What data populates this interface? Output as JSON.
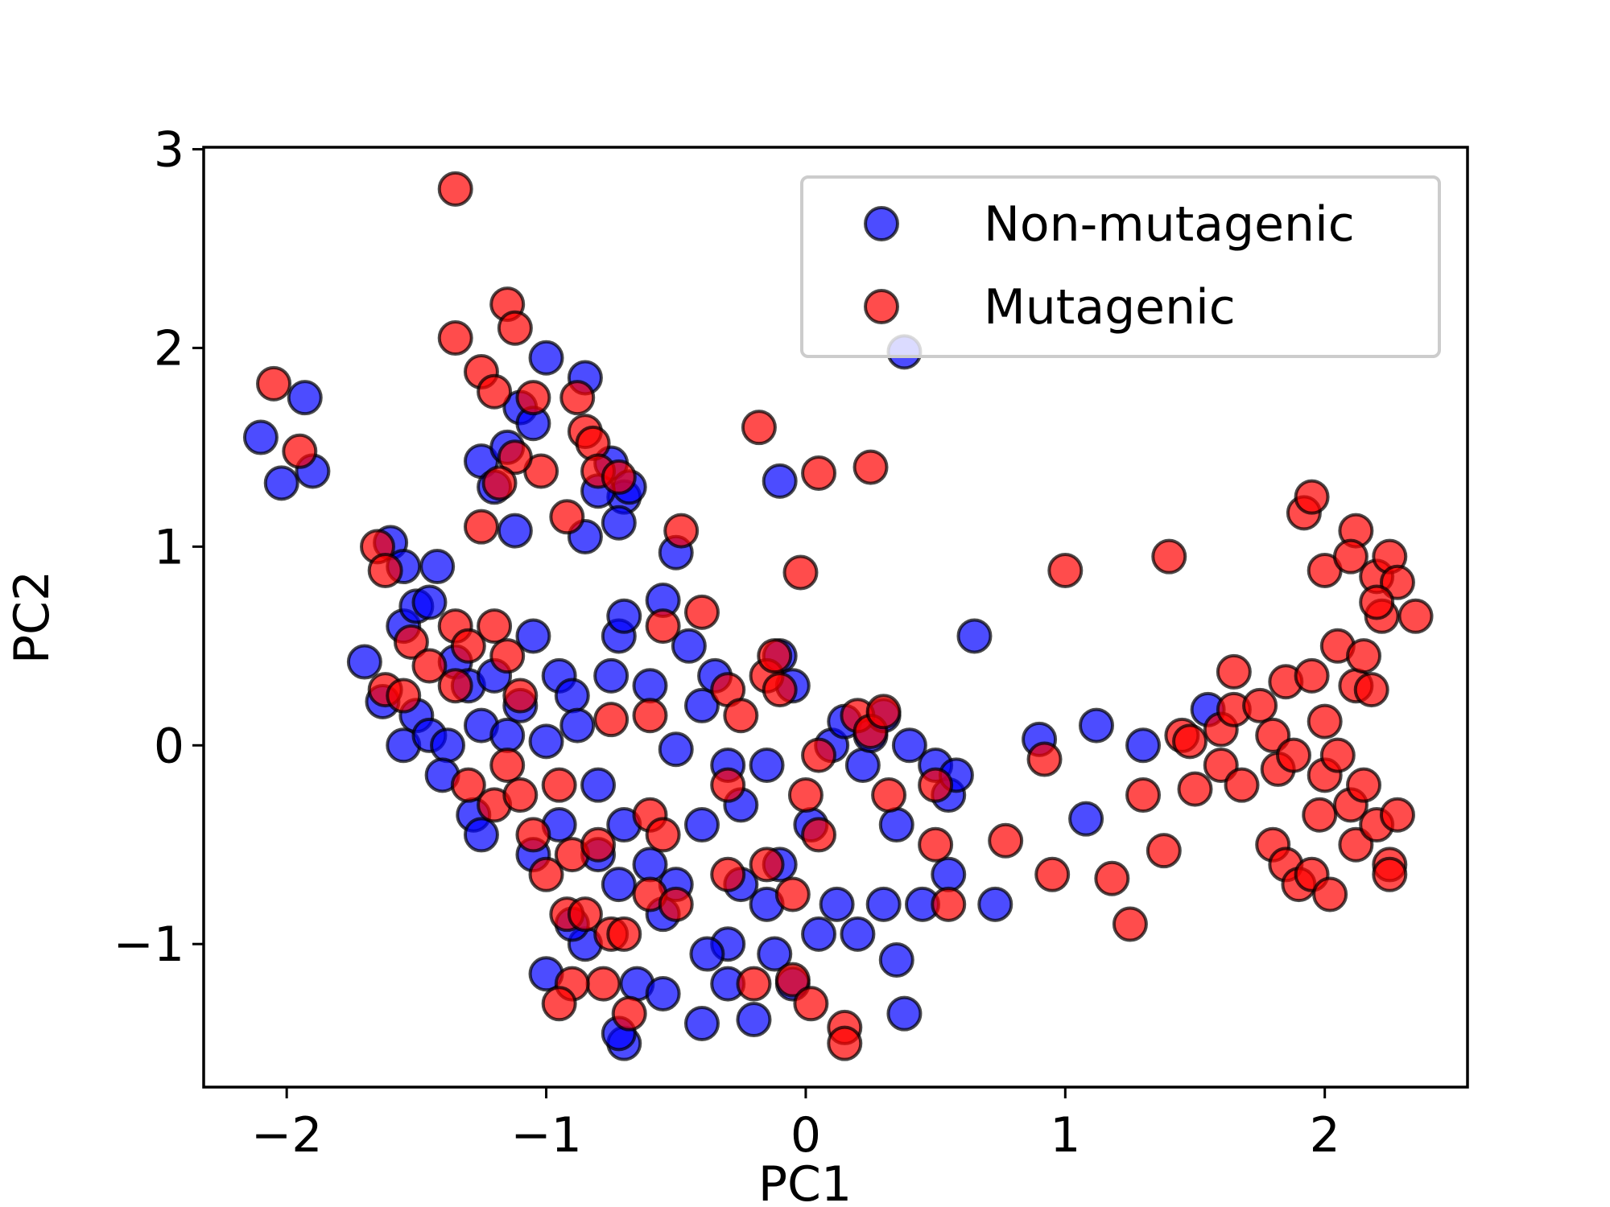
{
  "chart_data": {
    "type": "scatter",
    "x_label": "PC1",
    "y_label": "PC2",
    "xlim": [
      -2.32,
      2.55
    ],
    "ylim": [
      -1.72,
      3.01
    ],
    "xticks": [
      {
        "value": -2,
        "label": "−2"
      },
      {
        "value": -1,
        "label": "−1"
      },
      0,
      1,
      2
    ],
    "yticks": [
      {
        "value": -1,
        "label": "−1"
      },
      0,
      1,
      2,
      3
    ],
    "legend": "upper right",
    "series": [
      {
        "name": "Non-mutagenic",
        "color": "#0000ff",
        "x": [
          -2.1,
          -2.02,
          -1.93,
          -1.9,
          -1.6,
          -1.55,
          -1.42,
          -1.7,
          -1.63,
          -1.55,
          -1.5,
          -1.45,
          -1.55,
          -1.5,
          -1.45,
          -1.38,
          -1.4,
          -1.35,
          -1.3,
          -1.28,
          -1.25,
          -1.2,
          -1.15,
          -1.1,
          -1.05,
          -1.0,
          -0.95,
          -0.9,
          -0.88,
          -0.8,
          -0.75,
          -0.72,
          -0.7,
          -0.6,
          -0.5,
          -0.45,
          -0.4,
          -0.35,
          -0.3,
          -0.25,
          -0.15,
          -0.1,
          -0.05,
          -0.1,
          -0.15,
          -0.25,
          -0.3,
          -0.38,
          -0.4,
          -0.5,
          -0.55,
          -0.6,
          -0.7,
          -0.72,
          -0.8,
          -0.85,
          -0.9,
          -1.0,
          -0.95,
          -1.05,
          -1.25,
          -0.65,
          -0.55,
          -0.7,
          -0.72,
          -0.4,
          -0.3,
          -0.2,
          -0.12,
          -0.05,
          0.02,
          0.05,
          0.1,
          0.15,
          0.22,
          0.25,
          0.3,
          0.35,
          0.4,
          0.45,
          0.3,
          0.35,
          0.38,
          0.2,
          0.12,
          0.5,
          0.55,
          0.58,
          0.55,
          0.65,
          0.73,
          0.9,
          1.08,
          1.12,
          1.3,
          1.55,
          0.38,
          -0.1,
          -0.5,
          -0.55,
          -1.0,
          -0.85,
          -1.1,
          -1.25,
          -1.15,
          -1.05,
          -1.2,
          -1.12,
          -0.85,
          -0.75,
          -0.7,
          -0.72,
          -0.68,
          -0.8
        ],
        "y": [
          1.55,
          1.32,
          1.75,
          1.38,
          1.02,
          0.9,
          0.9,
          0.42,
          0.22,
          0.6,
          0.7,
          0.72,
          0.0,
          0.15,
          0.05,
          0.0,
          -0.15,
          0.42,
          0.3,
          -0.35,
          0.1,
          0.35,
          0.05,
          0.2,
          0.55,
          0.02,
          0.35,
          0.25,
          0.1,
          -0.2,
          0.35,
          0.55,
          0.65,
          0.3,
          -0.02,
          0.5,
          0.2,
          0.35,
          -0.1,
          -0.3,
          -0.1,
          0.45,
          0.3,
          -0.6,
          -0.8,
          -0.7,
          -1.0,
          -1.05,
          -0.4,
          -0.7,
          -0.85,
          -0.6,
          -0.4,
          -0.7,
          -0.55,
          -1.0,
          -0.9,
          -1.15,
          -0.4,
          -0.55,
          -0.45,
          -1.2,
          -1.25,
          -1.5,
          -1.45,
          -1.4,
          -1.2,
          -1.38,
          -1.05,
          -1.2,
          -0.4,
          -0.95,
          0.0,
          0.12,
          -0.1,
          0.05,
          0.15,
          -0.4,
          0.0,
          -0.8,
          -0.8,
          -1.08,
          -1.35,
          -0.95,
          -0.8,
          -0.1,
          -0.25,
          -0.15,
          -0.65,
          0.55,
          -0.8,
          0.03,
          -0.37,
          0.1,
          0.0,
          0.18,
          1.98,
          1.33,
          0.97,
          0.73,
          1.95,
          1.85,
          1.7,
          1.43,
          1.5,
          1.62,
          1.3,
          1.08,
          1.05,
          1.42,
          1.25,
          1.12,
          1.3,
          1.28
        ]
      },
      {
        "name": "Mutagenic",
        "color": "#ff0000",
        "x": [
          -1.35,
          -1.35,
          -1.15,
          -1.12,
          -1.25,
          -1.2,
          -1.05,
          -0.88,
          -0.85,
          -0.82,
          -0.8,
          -0.72,
          -1.02,
          -1.12,
          -1.18,
          -0.92,
          -1.25,
          -0.48,
          -0.18,
          0.05,
          0.25,
          -0.02,
          1.0,
          1.4,
          -2.05,
          -1.95,
          -1.65,
          -1.62,
          -1.52,
          -1.45,
          -1.35,
          -1.3,
          -1.2,
          -1.15,
          -1.1,
          -1.35,
          -1.62,
          -1.55,
          -1.3,
          -1.2,
          -1.15,
          -1.1,
          -1.05,
          -1.0,
          -0.95,
          -0.9,
          -0.92,
          -0.85,
          -0.8,
          -0.75,
          -0.7,
          -0.78,
          -0.68,
          -0.9,
          -0.95,
          -0.6,
          -0.5,
          -0.6,
          -0.55,
          -0.55,
          -0.4,
          -0.6,
          -0.75,
          -0.3,
          -0.25,
          -0.15,
          -0.12,
          -0.1,
          -0.3,
          -0.3,
          -0.15,
          -0.05,
          0.0,
          0.05,
          0.05,
          -0.2,
          -0.05,
          0.02,
          0.15,
          0.15,
          0.2,
          0.25,
          0.3,
          0.32,
          0.5,
          0.5,
          0.55,
          0.77,
          0.92,
          0.95,
          1.18,
          1.25,
          1.3,
          1.38,
          1.45,
          1.48,
          1.5,
          1.6,
          1.65,
          1.65,
          1.6,
          1.68,
          1.75,
          1.8,
          1.85,
          1.82,
          1.88,
          1.8,
          1.85,
          1.9,
          1.95,
          2.02,
          1.98,
          2.0,
          2.05,
          2.1,
          2.12,
          2.15,
          2.2,
          2.25,
          2.25,
          2.28,
          1.95,
          2.0,
          2.05,
          2.12,
          2.15,
          2.18,
          1.92,
          1.95,
          2.0,
          2.12,
          2.1,
          2.2,
          2.25,
          2.22,
          2.28,
          2.35,
          2.2
        ],
        "y": [
          2.8,
          2.05,
          2.22,
          2.1,
          1.88,
          1.78,
          1.75,
          1.75,
          1.58,
          1.52,
          1.38,
          1.35,
          1.38,
          1.45,
          1.32,
          1.15,
          1.1,
          1.08,
          1.6,
          1.37,
          1.4,
          0.87,
          0.88,
          0.95,
          1.82,
          1.48,
          1.0,
          0.88,
          0.52,
          0.4,
          0.6,
          0.5,
          0.6,
          0.45,
          0.25,
          0.3,
          0.28,
          0.25,
          -0.2,
          -0.3,
          -0.1,
          -0.25,
          -0.45,
          -0.65,
          -0.2,
          -0.55,
          -0.85,
          -0.85,
          -0.5,
          -0.95,
          -0.95,
          -1.2,
          -1.35,
          -1.2,
          -1.3,
          -0.75,
          -0.8,
          -0.35,
          -0.45,
          0.6,
          0.67,
          0.15,
          0.13,
          0.28,
          0.15,
          0.35,
          0.45,
          0.28,
          -0.2,
          -0.65,
          -0.6,
          -0.75,
          -0.25,
          -0.45,
          -0.05,
          -1.2,
          -1.18,
          -1.3,
          -1.42,
          -1.5,
          0.15,
          0.07,
          0.17,
          -0.25,
          -0.2,
          -0.5,
          -0.8,
          -0.48,
          -0.07,
          -0.65,
          -0.67,
          -0.9,
          -0.25,
          -0.53,
          0.05,
          0.02,
          -0.22,
          0.08,
          0.18,
          0.37,
          -0.1,
          -0.2,
          0.2,
          0.05,
          0.32,
          -0.12,
          -0.05,
          -0.5,
          -0.6,
          -0.7,
          -0.65,
          -0.75,
          -0.35,
          -0.15,
          -0.05,
          -0.3,
          -0.5,
          -0.2,
          -0.4,
          -0.6,
          -0.65,
          -0.35,
          0.35,
          0.12,
          0.5,
          0.3,
          0.45,
          0.28,
          1.17,
          1.25,
          0.88,
          1.08,
          0.95,
          0.85,
          0.95,
          0.65,
          0.82,
          0.65,
          0.72
        ]
      }
    ]
  }
}
